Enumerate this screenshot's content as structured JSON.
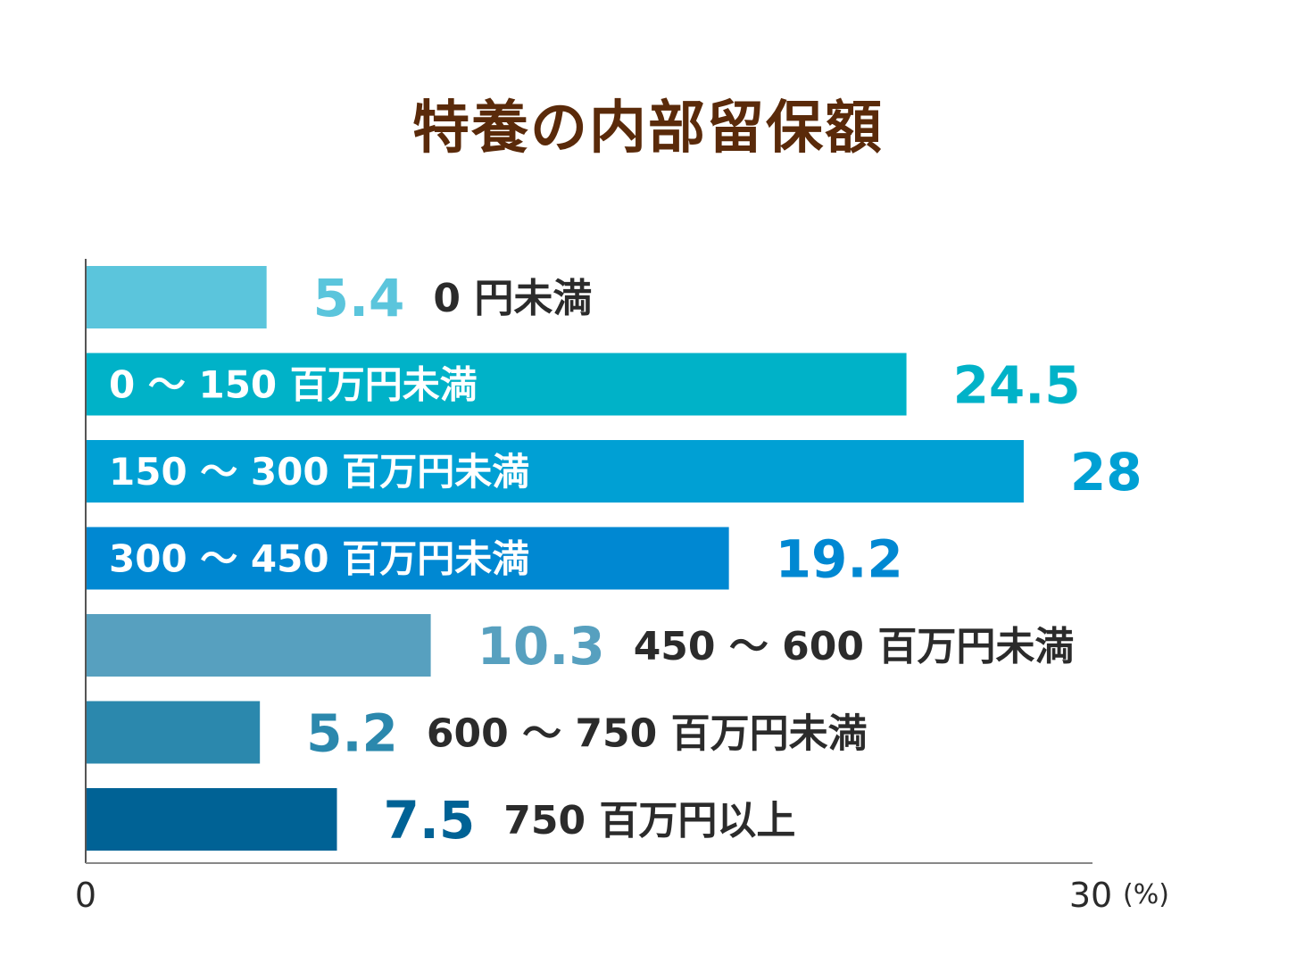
{
  "chart_data": {
    "type": "bar",
    "orientation": "horizontal",
    "title": "特養の内部留保額",
    "categories": [
      "0 円未満",
      "0 〜 150 百万円未満",
      "150 〜 300 百万円未満",
      "300 〜 450 百万円未満",
      "450 〜 600 百万円未満",
      "600 〜 750 百万円未満",
      "750 百万円以上"
    ],
    "values": [
      5.4,
      24.5,
      28,
      19.2,
      10.3,
      5.2,
      7.5
    ],
    "value_labels": [
      "5.4",
      "24.5",
      "28",
      "19.2",
      "10.3",
      "5.2",
      "7.5"
    ],
    "label_inside": [
      false,
      true,
      true,
      true,
      false,
      false,
      false
    ],
    "colors": [
      "#5bc5dc",
      "#00b2c8",
      "#00a0d4",
      "#0088d2",
      "#57a0bf",
      "#2b88ad",
      "#006295"
    ],
    "xlim": [
      0,
      30
    ],
    "x_ticks": [
      "0",
      "30"
    ],
    "unit": "(%)",
    "grid": false
  }
}
